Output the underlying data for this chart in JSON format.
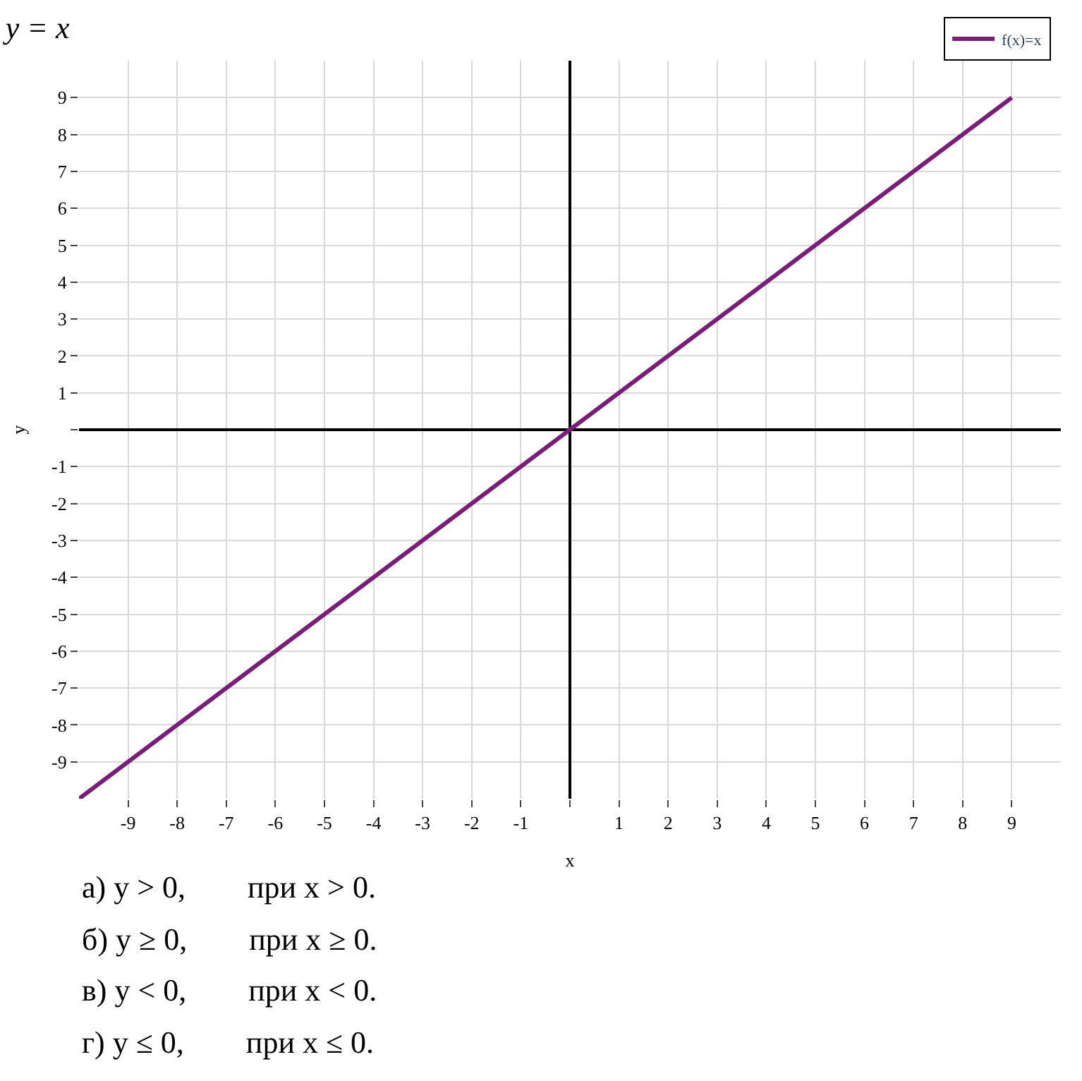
{
  "chart_data": {
    "type": "line",
    "title": "y = x",
    "xlabel": "x",
    "ylabel": "y",
    "x": [
      -10,
      9
    ],
    "series": [
      {
        "name": "f(x)=x",
        "color": "#7b1c7b",
        "values": [
          -10,
          9
        ]
      }
    ],
    "xlim": [
      -10,
      10
    ],
    "ylim": [
      -10,
      10
    ],
    "xticks": [
      -9,
      -8,
      -7,
      -6,
      -5,
      -4,
      -3,
      -2,
      -1,
      {
        "value": 0,
        "label": null
      },
      1,
      2,
      3,
      4,
      5,
      6,
      7,
      8,
      9
    ],
    "yticks": [
      -9,
      -8,
      -7,
      -6,
      -5,
      -4,
      -3,
      -2,
      -1,
      {
        "value": 0,
        "label": null
      },
      1,
      2,
      3,
      4,
      5,
      6,
      7,
      8,
      9
    ],
    "grid": true,
    "legend": "top right",
    "marker": "none",
    "line_style": "solid",
    "annotations": [
      "а) y > 0,        при x > 0.",
      "б) y ≥ 0,        при x ≥ 0.",
      "в) y < 0,        при x < 0.",
      "г) y ≤ 0,        при x ≤ 0."
    ]
  }
}
